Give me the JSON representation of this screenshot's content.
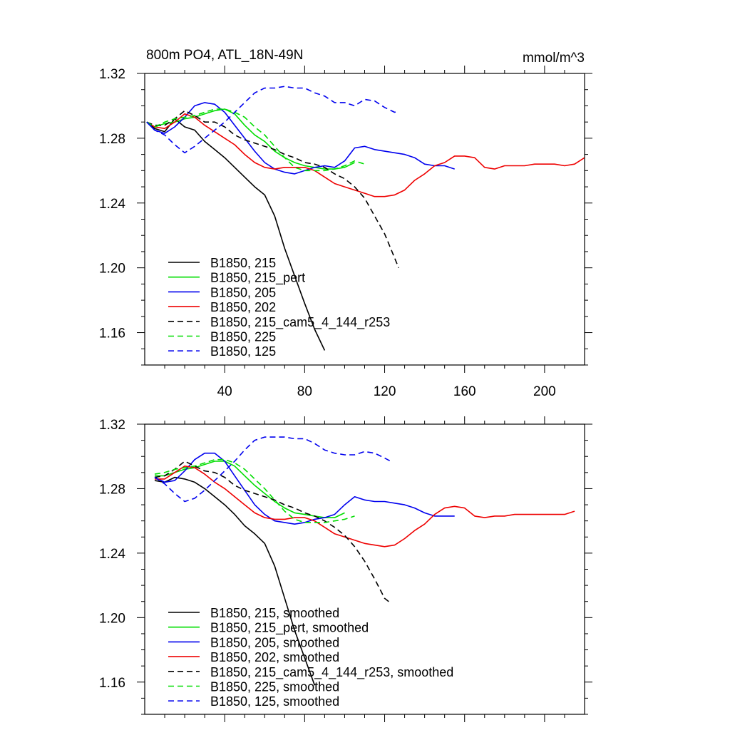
{
  "chart_data": [
    {
      "type": "line",
      "title_left": "800m PO4, ATL_18N-49N",
      "title_right": "mmol/m^3",
      "xlabel": "",
      "ylabel": "",
      "xlim": [
        0,
        220
      ],
      "ylim": [
        1.14,
        1.32
      ],
      "x_ticks": [
        40,
        80,
        120,
        160,
        200
      ],
      "x_tick_labels": [
        "40",
        "80",
        "120",
        "160",
        "200"
      ],
      "y_ticks": [
        1.16,
        1.2,
        1.24,
        1.28,
        1.32
      ],
      "y_tick_labels": [
        "1.16",
        "1.20",
        "1.24",
        "1.28",
        "1.32"
      ],
      "grid": false,
      "legend_position": "bottom-left",
      "series": [
        {
          "name": "B1850, 215",
          "color": "#000000",
          "dashed": false,
          "x": [
            1,
            5,
            10,
            15,
            20,
            25,
            30,
            35,
            40,
            45,
            50,
            55,
            60,
            65,
            70,
            75,
            80,
            85,
            90
          ],
          "y": [
            1.29,
            1.286,
            1.284,
            1.292,
            1.287,
            1.285,
            1.278,
            1.273,
            1.268,
            1.262,
            1.256,
            1.25,
            1.245,
            1.232,
            1.212,
            1.195,
            1.178,
            1.162,
            1.149
          ]
        },
        {
          "name": "B1850, 215_pert",
          "color": "#00dd00",
          "dashed": false,
          "x": [
            1,
            5,
            10,
            15,
            20,
            25,
            30,
            35,
            40,
            45,
            50,
            55,
            60,
            65,
            70,
            75,
            80,
            85,
            90,
            95,
            100,
            105
          ],
          "y": [
            1.29,
            1.287,
            1.289,
            1.29,
            1.292,
            1.293,
            1.295,
            1.297,
            1.298,
            1.295,
            1.288,
            1.282,
            1.278,
            1.272,
            1.268,
            1.265,
            1.263,
            1.262,
            1.261,
            1.261,
            1.262,
            1.265
          ]
        },
        {
          "name": "B1850, 205",
          "color": "#0000ee",
          "dashed": false,
          "x": [
            1,
            5,
            10,
            15,
            20,
            25,
            30,
            35,
            40,
            45,
            50,
            55,
            60,
            65,
            70,
            75,
            80,
            85,
            90,
            95,
            100,
            105,
            110,
            115,
            120,
            125,
            130,
            135,
            140,
            145,
            150,
            155
          ],
          "y": [
            1.29,
            1.285,
            1.283,
            1.287,
            1.293,
            1.3,
            1.302,
            1.301,
            1.296,
            1.288,
            1.28,
            1.272,
            1.265,
            1.261,
            1.259,
            1.258,
            1.26,
            1.262,
            1.263,
            1.262,
            1.266,
            1.274,
            1.275,
            1.273,
            1.272,
            1.271,
            1.27,
            1.268,
            1.264,
            1.263,
            1.263,
            1.261
          ]
        },
        {
          "name": "B1850, 202",
          "color": "#ee0000",
          "dashed": false,
          "x": [
            1,
            5,
            10,
            15,
            20,
            25,
            30,
            35,
            40,
            45,
            50,
            55,
            60,
            65,
            70,
            75,
            80,
            85,
            90,
            95,
            100,
            105,
            110,
            115,
            120,
            125,
            130,
            135,
            140,
            145,
            150,
            155,
            160,
            165,
            170,
            175,
            180,
            185,
            190,
            195,
            200,
            205,
            210,
            215,
            220
          ],
          "y": [
            1.29,
            1.287,
            1.286,
            1.29,
            1.295,
            1.293,
            1.288,
            1.284,
            1.28,
            1.276,
            1.27,
            1.265,
            1.262,
            1.261,
            1.262,
            1.262,
            1.262,
            1.26,
            1.256,
            1.252,
            1.25,
            1.248,
            1.246,
            1.244,
            1.244,
            1.245,
            1.248,
            1.254,
            1.258,
            1.263,
            1.265,
            1.269,
            1.269,
            1.268,
            1.262,
            1.261,
            1.263,
            1.263,
            1.263,
            1.264,
            1.264,
            1.264,
            1.263,
            1.264,
            1.268
          ]
        },
        {
          "name": "B1850, 215_cam5_4_144_r253",
          "color": "#000000",
          "dashed": true,
          "x": [
            1,
            5,
            10,
            15,
            20,
            25,
            30,
            35,
            40,
            45,
            50,
            55,
            60,
            65,
            70,
            75,
            80,
            85,
            90,
            95,
            100,
            105,
            110,
            115,
            120,
            125,
            127
          ],
          "y": [
            1.29,
            1.288,
            1.288,
            1.292,
            1.297,
            1.294,
            1.29,
            1.29,
            1.287,
            1.282,
            1.279,
            1.277,
            1.275,
            1.273,
            1.27,
            1.268,
            1.265,
            1.264,
            1.262,
            1.258,
            1.255,
            1.25,
            1.243,
            1.232,
            1.221,
            1.206,
            1.2
          ]
        },
        {
          "name": "B1850, 225",
          "color": "#00dd00",
          "dashed": true,
          "x": [
            1,
            5,
            10,
            15,
            20,
            25,
            30,
            35,
            40,
            45,
            50,
            55,
            60,
            65,
            70,
            75,
            80,
            85,
            90,
            95,
            100,
            105,
            110
          ],
          "y": [
            1.29,
            1.287,
            1.29,
            1.292,
            1.293,
            1.294,
            1.296,
            1.298,
            1.298,
            1.296,
            1.293,
            1.287,
            1.282,
            1.275,
            1.268,
            1.262,
            1.26,
            1.26,
            1.26,
            1.261,
            1.263,
            1.266,
            1.264
          ]
        },
        {
          "name": "B1850, 125",
          "color": "#0000ee",
          "dashed": true,
          "x": [
            1,
            5,
            10,
            15,
            20,
            25,
            30,
            35,
            40,
            45,
            50,
            55,
            60,
            65,
            70,
            75,
            80,
            85,
            90,
            95,
            100,
            105,
            110,
            115,
            120,
            125,
            127
          ],
          "y": [
            1.29,
            1.285,
            1.282,
            1.276,
            1.271,
            1.275,
            1.28,
            1.285,
            1.29,
            1.296,
            1.302,
            1.308,
            1.311,
            1.311,
            1.312,
            1.311,
            1.311,
            1.308,
            1.306,
            1.302,
            1.302,
            1.3,
            1.304,
            1.303,
            1.299,
            1.296,
            1.297
          ]
        }
      ]
    },
    {
      "type": "line",
      "title_left": "",
      "title_right": "",
      "xlabel": "",
      "ylabel": "",
      "xlim": [
        0,
        220
      ],
      "ylim": [
        1.14,
        1.32
      ],
      "x_ticks": [
        40,
        80,
        120,
        160,
        200
      ],
      "x_tick_labels": [],
      "y_ticks": [
        1.16,
        1.2,
        1.24,
        1.28,
        1.32
      ],
      "y_tick_labels": [
        "1.16",
        "1.20",
        "1.24",
        "1.28",
        "1.32"
      ],
      "grid": false,
      "legend_position": "bottom-left",
      "series": [
        {
          "name": "B1850, 215, smoothed",
          "color": "#000000",
          "dashed": false,
          "x": [
            5,
            10,
            15,
            20,
            25,
            30,
            35,
            40,
            45,
            50,
            55,
            60,
            65,
            70,
            75,
            80,
            85
          ],
          "y": [
            1.285,
            1.284,
            1.287,
            1.286,
            1.284,
            1.28,
            1.275,
            1.27,
            1.264,
            1.257,
            1.252,
            1.246,
            1.232,
            1.212,
            1.192,
            1.175,
            1.158
          ]
        },
        {
          "name": "B1850, 215_pert, smoothed",
          "color": "#00dd00",
          "dashed": false,
          "x": [
            5,
            10,
            15,
            20,
            25,
            30,
            35,
            40,
            45,
            50,
            55,
            60,
            65,
            70,
            75,
            80,
            85,
            90,
            95,
            100
          ],
          "y": [
            1.288,
            1.288,
            1.29,
            1.292,
            1.293,
            1.295,
            1.297,
            1.297,
            1.294,
            1.288,
            1.282,
            1.277,
            1.272,
            1.268,
            1.265,
            1.264,
            1.263,
            1.262,
            1.262,
            1.265
          ]
        },
        {
          "name": "B1850, 205, smoothed",
          "color": "#0000ee",
          "dashed": false,
          "x": [
            5,
            10,
            15,
            20,
            25,
            30,
            35,
            40,
            45,
            50,
            55,
            60,
            65,
            70,
            75,
            80,
            85,
            90,
            95,
            100,
            105,
            110,
            115,
            120,
            125,
            130,
            135,
            140,
            145,
            150,
            155
          ],
          "y": [
            1.287,
            1.284,
            1.285,
            1.291,
            1.298,
            1.302,
            1.302,
            1.297,
            1.288,
            1.279,
            1.27,
            1.264,
            1.26,
            1.259,
            1.258,
            1.259,
            1.261,
            1.262,
            1.264,
            1.27,
            1.275,
            1.273,
            1.272,
            1.272,
            1.271,
            1.27,
            1.268,
            1.265,
            1.263,
            1.263,
            1.263
          ]
        },
        {
          "name": "B1850, 202, smoothed",
          "color": "#ee0000",
          "dashed": false,
          "x": [
            5,
            10,
            15,
            20,
            25,
            30,
            35,
            40,
            45,
            50,
            55,
            60,
            65,
            70,
            75,
            80,
            85,
            90,
            95,
            100,
            105,
            110,
            115,
            120,
            125,
            130,
            135,
            140,
            145,
            150,
            155,
            160,
            165,
            170,
            175,
            180,
            185,
            190,
            195,
            200,
            205,
            210,
            215
          ],
          "y": [
            1.286,
            1.286,
            1.29,
            1.294,
            1.293,
            1.289,
            1.284,
            1.28,
            1.275,
            1.27,
            1.265,
            1.262,
            1.261,
            1.261,
            1.262,
            1.262,
            1.26,
            1.256,
            1.252,
            1.25,
            1.248,
            1.246,
            1.245,
            1.244,
            1.245,
            1.249,
            1.254,
            1.258,
            1.264,
            1.268,
            1.269,
            1.268,
            1.263,
            1.262,
            1.263,
            1.263,
            1.264,
            1.264,
            1.264,
            1.264,
            1.264,
            1.264,
            1.266
          ]
        },
        {
          "name": "B1850, 215_cam5_4_144_r253, smoothed",
          "color": "#000000",
          "dashed": true,
          "x": [
            5,
            10,
            15,
            20,
            25,
            30,
            35,
            40,
            45,
            50,
            55,
            60,
            65,
            70,
            75,
            80,
            85,
            90,
            95,
            100,
            105,
            110,
            115,
            120,
            123
          ],
          "y": [
            1.287,
            1.288,
            1.292,
            1.297,
            1.294,
            1.291,
            1.29,
            1.287,
            1.282,
            1.279,
            1.277,
            1.275,
            1.273,
            1.27,
            1.268,
            1.265,
            1.263,
            1.26,
            1.256,
            1.251,
            1.244,
            1.235,
            1.224,
            1.212,
            1.209
          ]
        },
        {
          "name": "B1850, 225, smoothed",
          "color": "#00dd00",
          "dashed": true,
          "x": [
            5,
            10,
            15,
            20,
            25,
            30,
            35,
            40,
            45,
            50,
            55,
            60,
            65,
            70,
            75,
            80,
            85,
            90,
            95,
            100,
            105
          ],
          "y": [
            1.289,
            1.29,
            1.292,
            1.293,
            1.294,
            1.296,
            1.298,
            1.298,
            1.296,
            1.292,
            1.286,
            1.28,
            1.273,
            1.266,
            1.261,
            1.259,
            1.259,
            1.259,
            1.26,
            1.261,
            1.263
          ]
        },
        {
          "name": "B1850, 125, smoothed",
          "color": "#0000ee",
          "dashed": true,
          "x": [
            5,
            10,
            15,
            20,
            25,
            30,
            35,
            40,
            45,
            50,
            55,
            60,
            65,
            70,
            75,
            80,
            85,
            90,
            95,
            100,
            105,
            110,
            115,
            120,
            123
          ],
          "y": [
            1.287,
            1.283,
            1.277,
            1.272,
            1.274,
            1.279,
            1.285,
            1.291,
            1.297,
            1.304,
            1.31,
            1.312,
            1.312,
            1.312,
            1.311,
            1.311,
            1.308,
            1.304,
            1.302,
            1.301,
            1.301,
            1.303,
            1.302,
            1.299,
            1.297
          ]
        }
      ]
    }
  ]
}
